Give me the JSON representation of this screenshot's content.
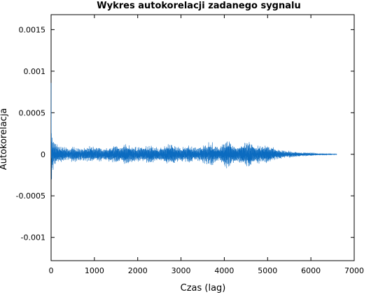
{
  "chart_data": {
    "type": "line",
    "title": "Wykres autokorelacji zadanego sygnalu",
    "xlabel": "Czas (lag)",
    "ylabel": "Autokorelacja",
    "xlim": [
      0,
      7000
    ],
    "ylim": [
      -0.00128,
      0.00168
    ],
    "x_ticks": [
      0,
      1000,
      2000,
      3000,
      4000,
      5000,
      6000,
      7000
    ],
    "x_tick_labels": [
      "0",
      "1000",
      "2000",
      "3000",
      "4000",
      "5000",
      "6000",
      "7000"
    ],
    "y_ticks": [
      0.0015,
      0.001,
      0.0005,
      0,
      -0.0005,
      -0.001
    ],
    "y_tick_labels": [
      "0.0015",
      "0.001",
      "0.0005",
      "0",
      "-0.0005",
      "-0.001"
    ],
    "grid": false,
    "legend": "none",
    "line_color": "#0b6bc0",
    "series": [
      {
        "x": [
          0,
          10,
          25,
          50,
          100,
          200,
          300,
          400,
          500,
          600,
          700,
          800,
          900,
          1000,
          1100,
          1200,
          1300,
          1400,
          1500,
          1600,
          1700,
          1800,
          1900,
          2000,
          2100,
          2200,
          2300,
          2400,
          2500,
          2600,
          2700,
          2800,
          2900,
          3000,
          3100,
          3200,
          3300,
          3400,
          3500,
          3600,
          3700,
          3800,
          3900,
          4000,
          4100,
          4200,
          4300,
          4400,
          4500,
          4600,
          4700,
          4800,
          4900,
          5000,
          5100,
          5200,
          5300,
          5400,
          5500,
          5600,
          5700,
          5800,
          5900,
          6000,
          6100,
          6200,
          6300,
          6400,
          6500,
          6600
        ],
        "y": [
          0.00086,
          0.00045,
          0.00028,
          0.00018,
          0.00012,
          9e-05,
          8e-05,
          7e-05,
          9e-05,
          8e-05,
          7e-05,
          8e-05,
          9e-05,
          8e-05,
          9e-05,
          7e-05,
          8e-05,
          9e-05,
          0.0001,
          8e-05,
          0.00011,
          0.0001,
          9e-05,
          8e-05,
          9e-05,
          0.0001,
          0.00011,
          9e-05,
          8e-05,
          9e-05,
          0.00012,
          0.00011,
          9e-05,
          8e-05,
          9e-05,
          0.0001,
          8e-05,
          7e-05,
          9e-05,
          0.00012,
          0.00014,
          9e-05,
          8e-05,
          0.00013,
          0.00016,
          0.00011,
          9e-05,
          0.00012,
          0.00014,
          0.00017,
          0.00011,
          0.0001,
          9e-05,
          0.00012,
          8e-05,
          6e-05,
          5e-05,
          4e-05,
          4e-05,
          3e-05,
          3e-05,
          2e-05,
          2e-05,
          2e-05,
          1.5e-05,
          1e-05,
          8e-06,
          6e-06,
          4e-06,
          3e-06
        ]
      }
    ]
  }
}
